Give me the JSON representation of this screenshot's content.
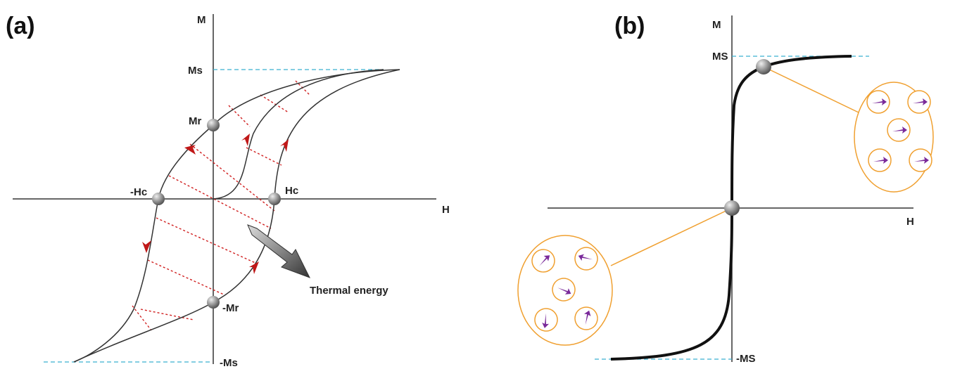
{
  "panel_a": {
    "label": "(a)",
    "y_axis": "M",
    "x_axis": "H",
    "ms": "Ms",
    "mr": "Mr",
    "neg_hc": "-Hc",
    "hc": "Hc",
    "neg_mr": "-Mr",
    "neg_ms": "-Ms",
    "annotation": "Thermal energy"
  },
  "panel_b": {
    "label": "(b)",
    "y_axis": "M",
    "x_axis": "H",
    "ms": "MS",
    "neg_ms": "-MS"
  }
}
